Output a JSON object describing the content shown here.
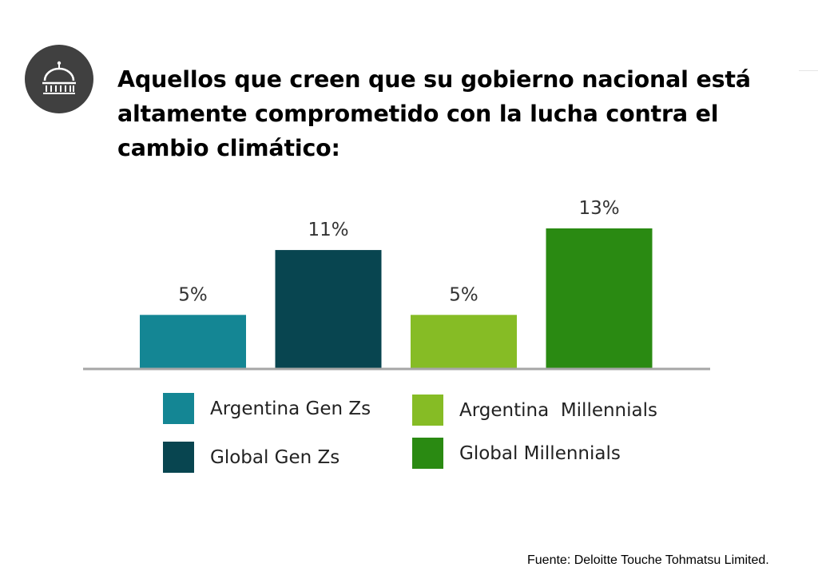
{
  "title": "Aquellos que creen que su gobierno nacional está altamente comprometido con la lucha contra el cambio climático:",
  "icon": "government-dome-icon",
  "source": "Fuente: Deloitte Touche Tohmatsu Limited.",
  "legend": [
    {
      "label": "Argentina Gen Zs",
      "color": "#148694"
    },
    {
      "label": "Global Gen Zs",
      "color": "#084550"
    },
    {
      "label": "Argentina  Millennials",
      "color": "#86bc25"
    },
    {
      "label": "Global Millennials",
      "color": "#2a8a12"
    }
  ],
  "chart_data": {
    "type": "bar",
    "categories": [
      "Argentina Gen Zs",
      "Global Gen Zs",
      "Argentina  Millennials",
      "Global Millennials"
    ],
    "values": [
      5,
      11,
      5,
      13
    ],
    "value_labels": [
      "5%",
      "11%",
      "5%",
      "13%"
    ],
    "colors": [
      "#148694",
      "#084550",
      "#86bc25",
      "#2a8a12"
    ],
    "unit": "%",
    "ylim": [
      0,
      13
    ],
    "grid": false,
    "legend_position": "bottom",
    "title": "",
    "xlabel": "",
    "ylabel": ""
  }
}
